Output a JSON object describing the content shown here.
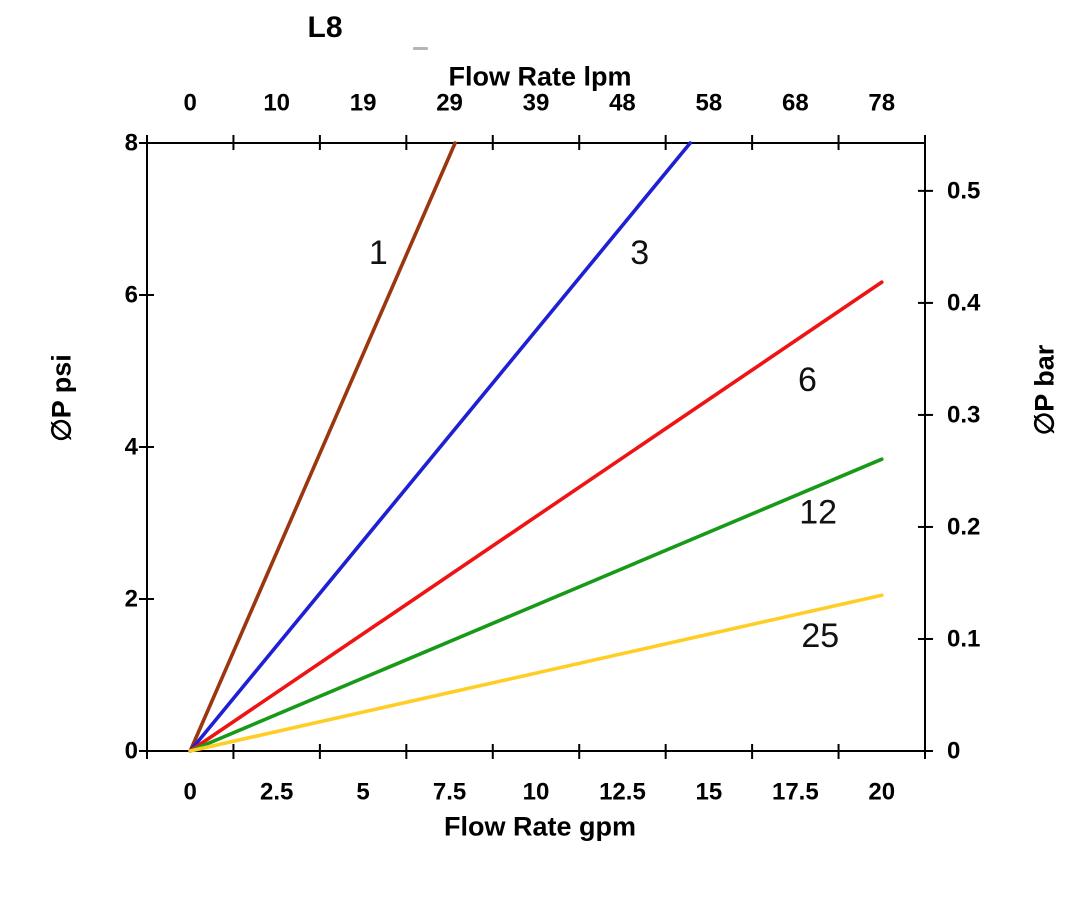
{
  "chart_data": {
    "type": "line",
    "title": "L8",
    "legend": "none",
    "grid": false,
    "axis_color": "#000000",
    "x_axis": {
      "label": "Flow Rate gpm",
      "unit": "gpm",
      "categories": [
        "0",
        "2.5",
        "5",
        "7.5",
        "10",
        "12.5",
        "15",
        "17.5",
        "20"
      ],
      "step_gpm": 2.5,
      "tick_style": "between-categories"
    },
    "x_axis_top": {
      "label": "Flow Rate lpm",
      "unit": "lpm",
      "tick_labels": [
        "0",
        "10",
        "19",
        "29",
        "39",
        "48",
        "58",
        "68",
        "78"
      ]
    },
    "y_left": {
      "label": "∅P psi",
      "unit": "psi",
      "ticks": [
        0,
        2,
        4,
        6,
        8
      ],
      "min": 0,
      "max": 8
    },
    "y_right": {
      "label": "∅P bar",
      "unit": "bar",
      "ticks": [
        0,
        0.1,
        0.2,
        0.3,
        0.4,
        0.5
      ],
      "psi_per_bar": 14.74
    },
    "series": [
      {
        "name": "1",
        "label": "1",
        "color": "#9a370e",
        "points_gpm_psi": [
          [
            0,
            0
          ],
          [
            7.66,
            8
          ]
        ],
        "label_pos_gpm_psi": [
          5.44,
          6.55
        ]
      },
      {
        "name": "3",
        "label": "3",
        "color": "#1f1fd4",
        "points_gpm_psi": [
          [
            0,
            0
          ],
          [
            14.46,
            8
          ]
        ],
        "label_pos_gpm_psi": [
          13.0,
          6.55
        ]
      },
      {
        "name": "6",
        "label": "6",
        "color": "#ee1414",
        "points_gpm_psi": [
          [
            0,
            0
          ],
          [
            20,
            6.17
          ]
        ],
        "label_pos_gpm_psi": [
          17.85,
          4.88
        ]
      },
      {
        "name": "12",
        "label": "12",
        "color": "#189a18",
        "points_gpm_psi": [
          [
            0,
            0
          ],
          [
            20,
            3.84
          ]
        ],
        "label_pos_gpm_psi": [
          18.16,
          3.14
        ]
      },
      {
        "name": "25",
        "label": "25",
        "color": "#ffce26",
        "points_gpm_psi": [
          [
            0,
            0
          ],
          [
            20,
            2.05
          ]
        ],
        "label_pos_gpm_psi": [
          18.22,
          1.51
        ]
      }
    ]
  }
}
